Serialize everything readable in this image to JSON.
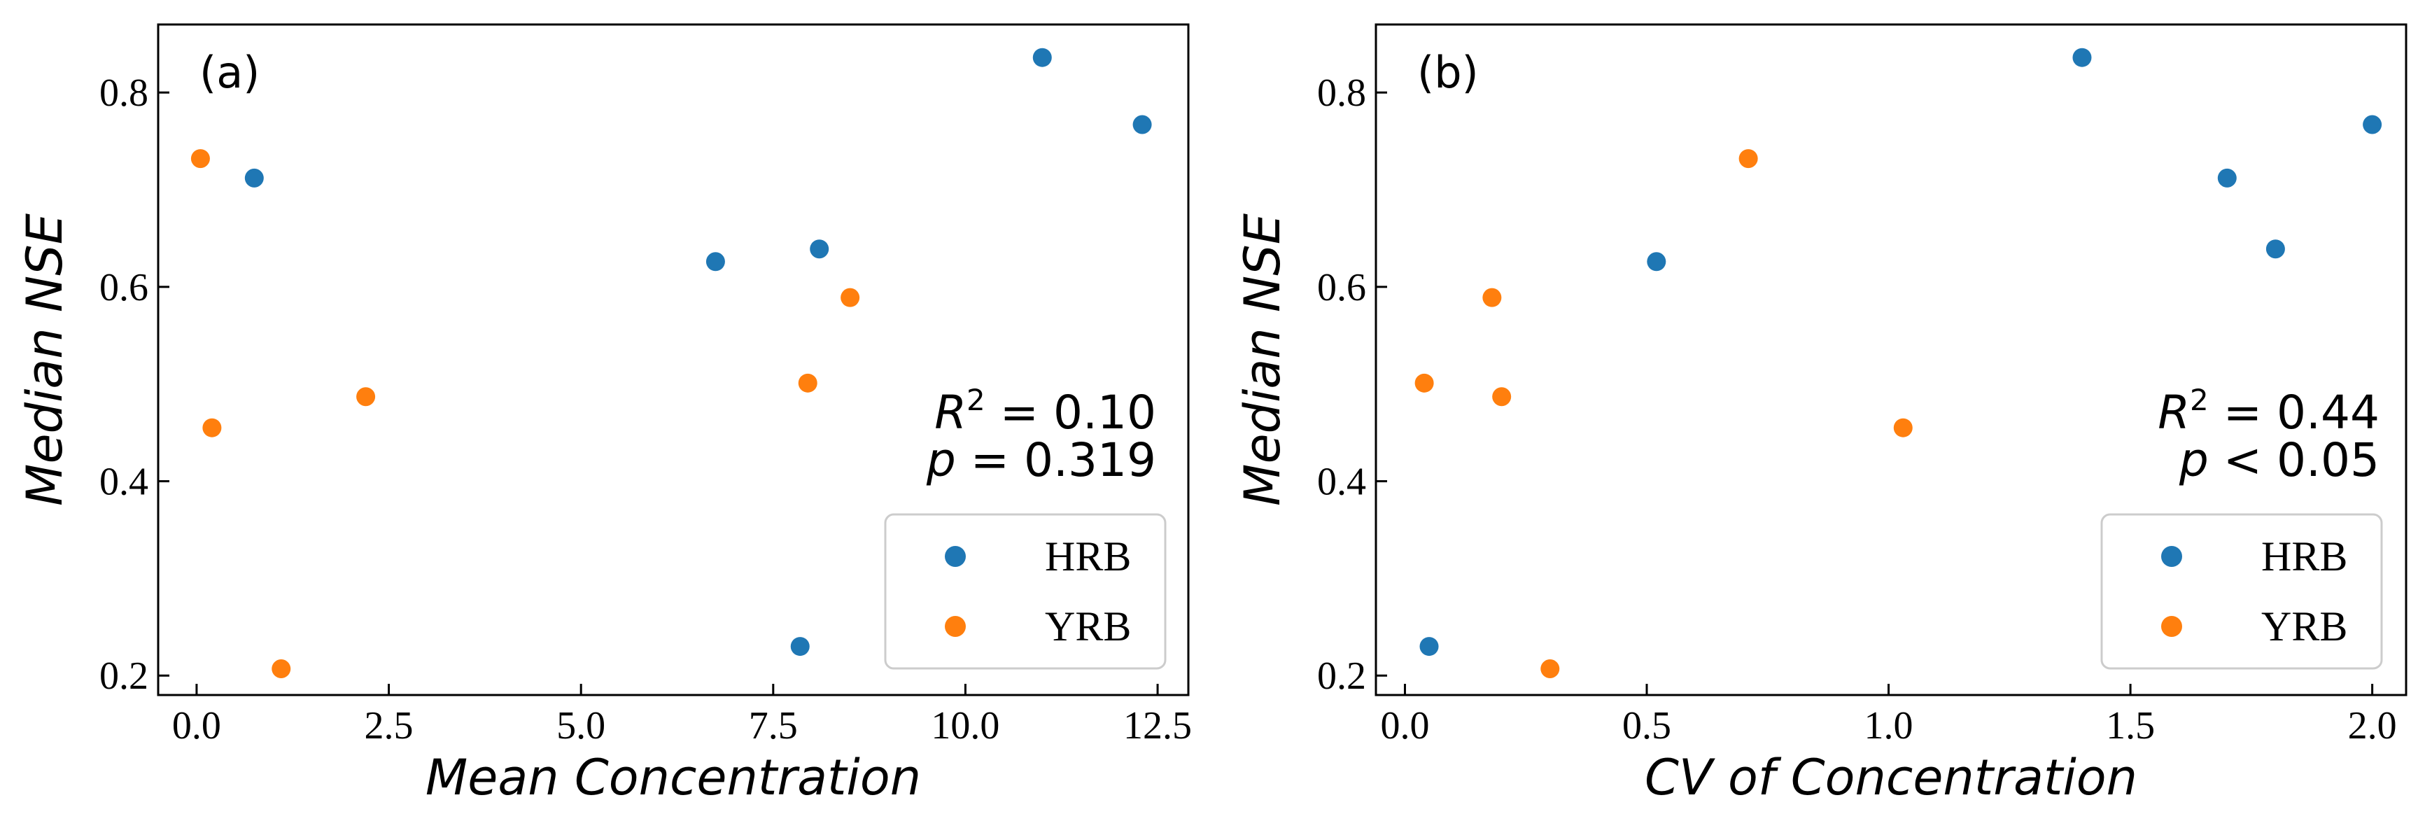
{
  "colors": {
    "HRB": "#1f77b4",
    "YRB": "#ff7f0e"
  },
  "chart_data": [
    {
      "type": "scatter",
      "panel_label": "(a)",
      "xlabel": "Mean Concentration",
      "ylabel": "Median NSE",
      "xlim": [
        -0.5,
        12.9
      ],
      "ylim": [
        0.18,
        0.87
      ],
      "xticks": [
        0.0,
        2.5,
        5.0,
        7.5,
        10.0,
        12.5
      ],
      "xtick_labels": [
        "0.0",
        "2.5",
        "5.0",
        "7.5",
        "10.0",
        "12.5"
      ],
      "yticks": [
        0.2,
        0.4,
        0.6,
        0.8
      ],
      "ytick_labels": [
        "0.2",
        "0.4",
        "0.6",
        "0.8"
      ],
      "stats": {
        "r2": "= 0.10",
        "p_op": "= 0.319"
      },
      "legend_position": "lower-right",
      "series": [
        {
          "name": "HRB",
          "color_key": "HRB",
          "x": [
            0.75,
            6.75,
            8.1,
            7.85,
            11.0,
            12.3
          ],
          "y": [
            0.712,
            0.626,
            0.639,
            0.23,
            0.836,
            0.767
          ]
        },
        {
          "name": "YRB",
          "color_key": "YRB",
          "x": [
            0.05,
            0.2,
            1.1,
            2.2,
            7.95,
            8.5
          ],
          "y": [
            0.732,
            0.455,
            0.207,
            0.487,
            0.501,
            0.589
          ]
        }
      ]
    },
    {
      "type": "scatter",
      "panel_label": "(b)",
      "xlabel": "CV of Concentration",
      "ylabel": "Median NSE",
      "xlim": [
        -0.06,
        2.07
      ],
      "ylim": [
        0.18,
        0.87
      ],
      "xticks": [
        0.0,
        0.5,
        1.0,
        1.5,
        2.0
      ],
      "xtick_labels": [
        "0.0",
        "0.5",
        "1.0",
        "1.5",
        "2.0"
      ],
      "yticks": [
        0.2,
        0.4,
        0.6,
        0.8
      ],
      "ytick_labels": [
        "0.2",
        "0.4",
        "0.6",
        "0.8"
      ],
      "stats": {
        "r2": "= 0.44",
        "p_op": "< 0.05"
      },
      "legend_position": "lower-right",
      "series": [
        {
          "name": "HRB",
          "color_key": "HRB",
          "x": [
            0.05,
            0.52,
            1.4,
            1.7,
            1.8,
            2.0
          ],
          "y": [
            0.23,
            0.626,
            0.836,
            0.712,
            0.639,
            0.767
          ]
        },
        {
          "name": "YRB",
          "color_key": "YRB",
          "x": [
            0.04,
            0.18,
            0.2,
            0.3,
            0.71,
            1.03
          ],
          "y": [
            0.501,
            0.589,
            0.487,
            0.207,
            0.732,
            0.455
          ]
        }
      ]
    }
  ]
}
